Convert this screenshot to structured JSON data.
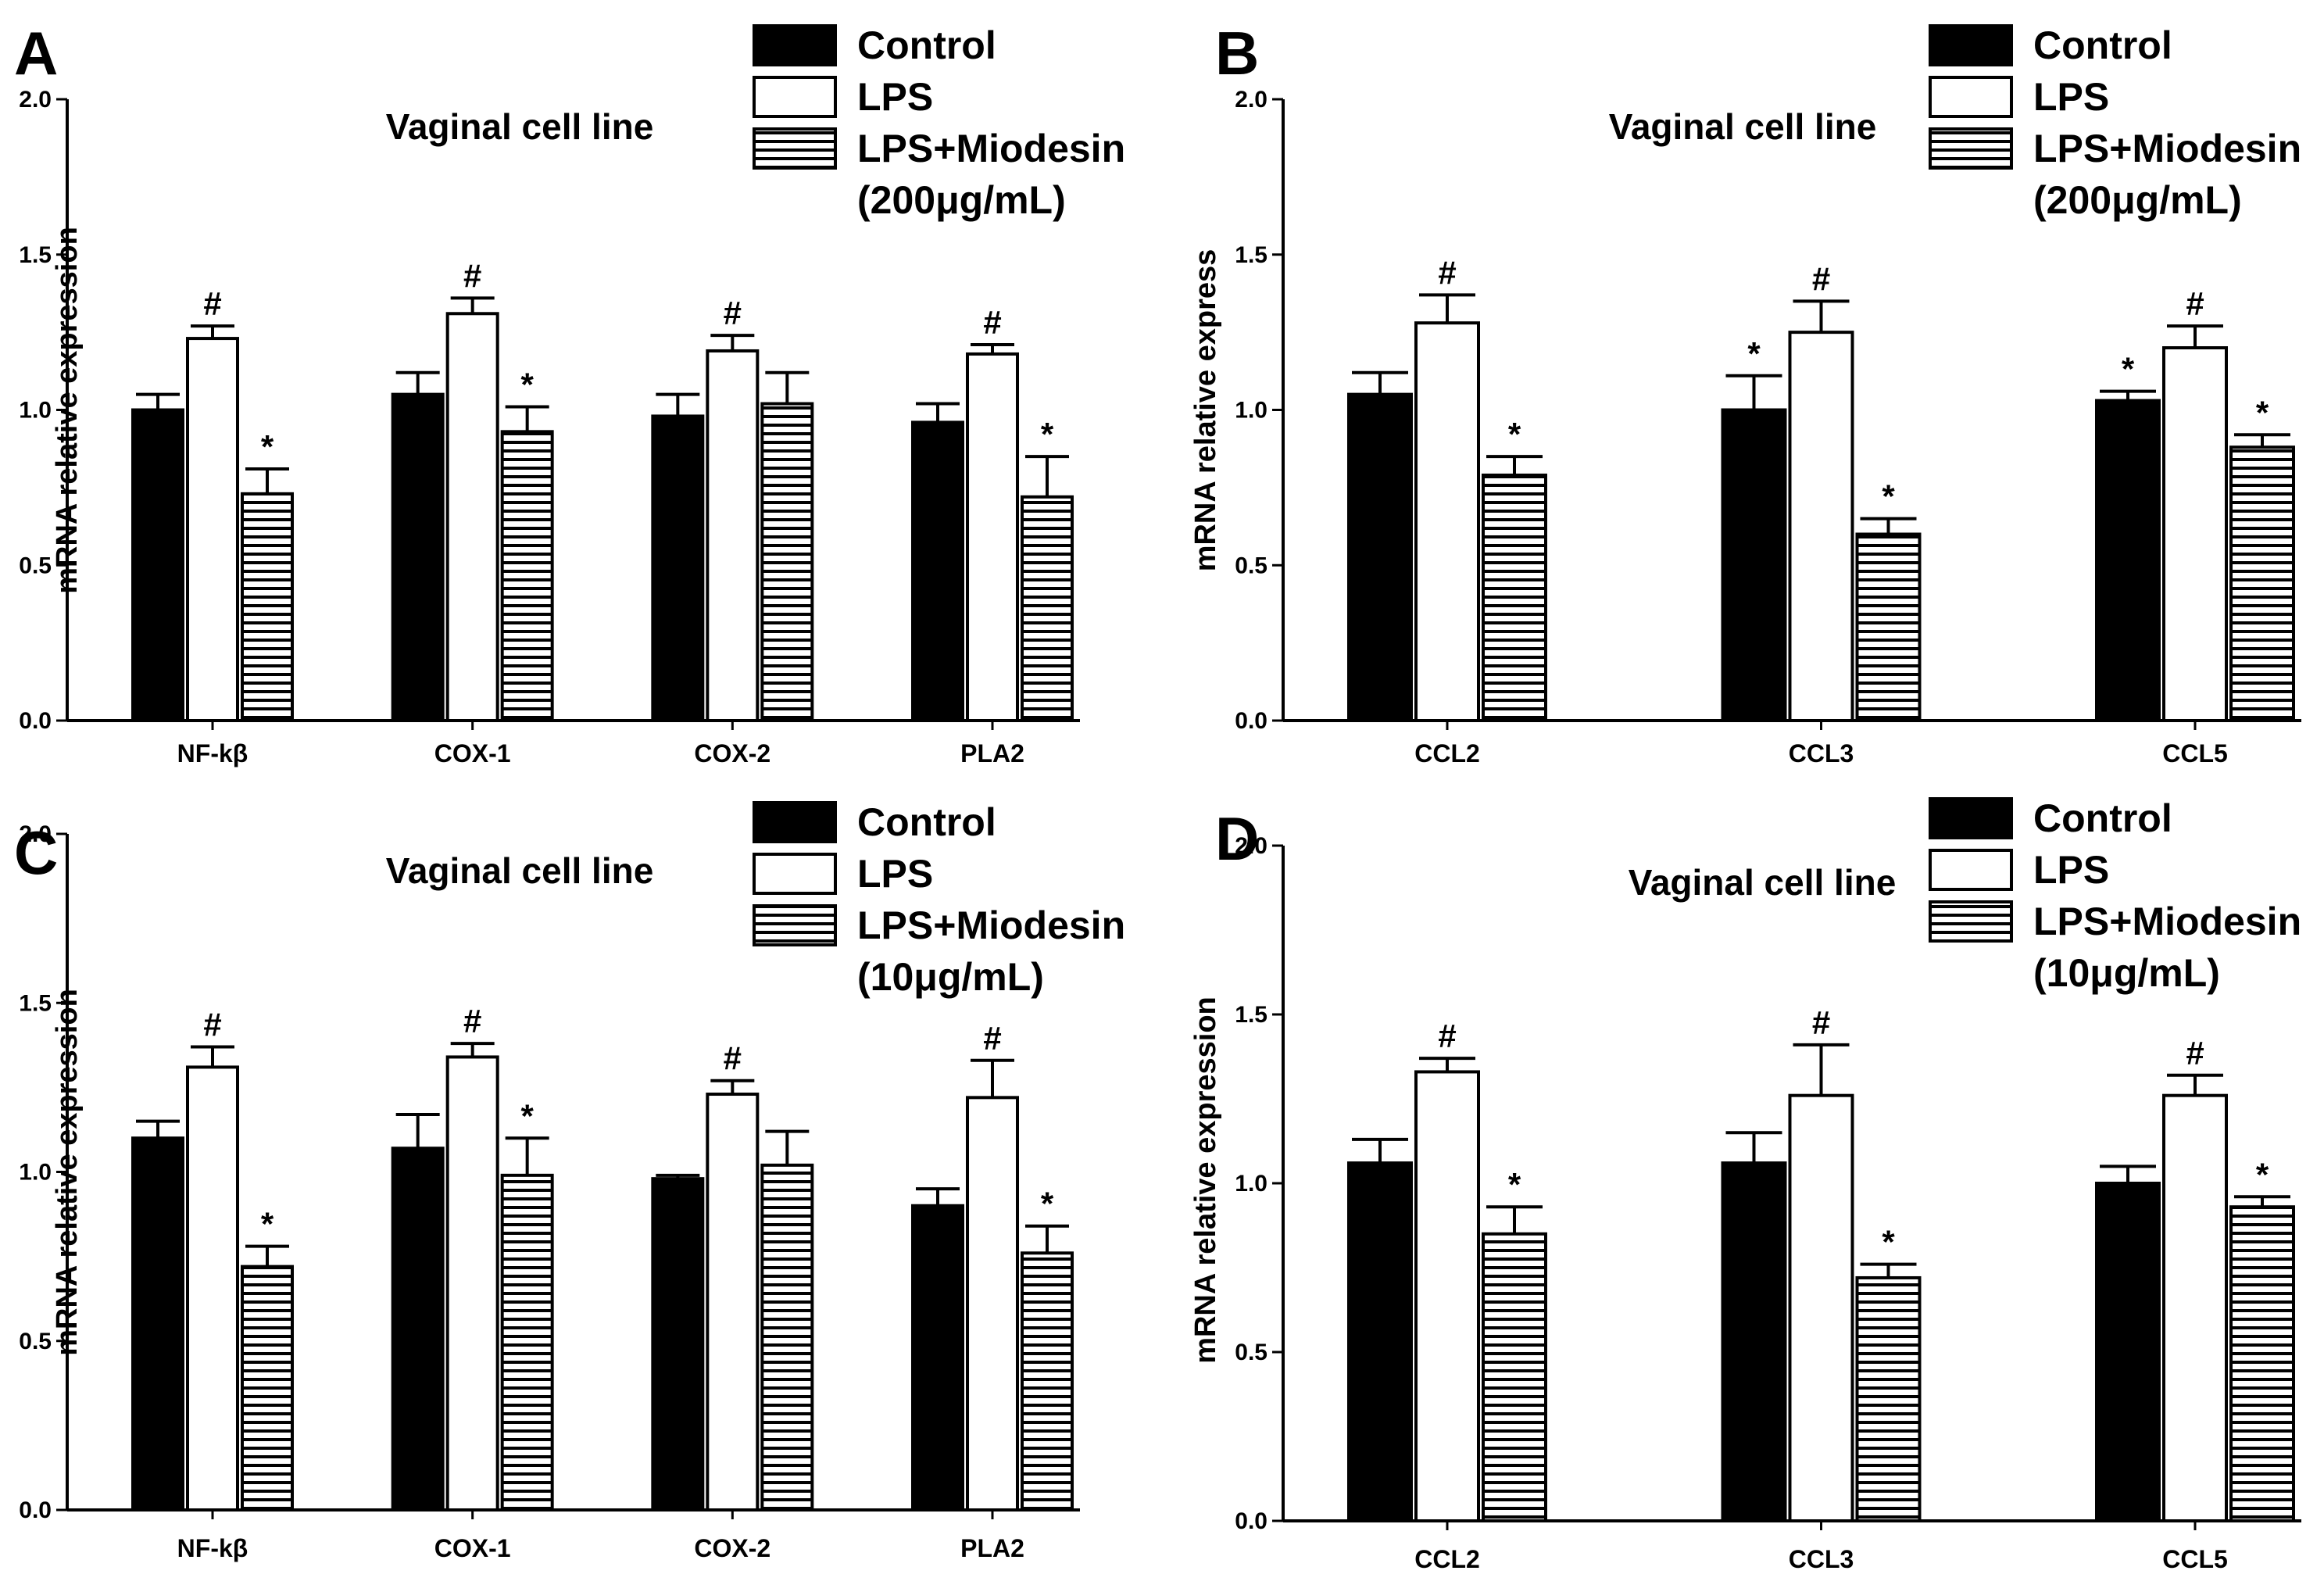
{
  "colors": {
    "control": "#000000",
    "lps": "#ffffff",
    "treated_stripe": "#000000",
    "axis": "#000000"
  },
  "legend_swatches": [
    "solid-black",
    "white",
    "horizontal-stripes"
  ],
  "chart_data": [
    {
      "panel": "A",
      "type": "bar",
      "title": "Vaginal cell line",
      "ylabel": "mRNA relative expression",
      "xlabel": "",
      "ylim": [
        0,
        2.0
      ],
      "yticks": [
        "0.0",
        "0.5",
        "1.0",
        "1.5",
        "2.0"
      ],
      "grid": false,
      "legend_position": "top-right",
      "legend": [
        "Control",
        "LPS",
        "LPS+Miodesin",
        "(200μg/mL)"
      ],
      "categories": [
        "NF-kβ",
        "COX-1",
        "COX-2",
        "PLA2"
      ],
      "series": [
        {
          "name": "Control",
          "values": [
            1.0,
            1.05,
            0.98,
            0.96
          ],
          "errors": [
            0.05,
            0.07,
            0.07,
            0.06
          ],
          "marks": [
            "",
            "",
            "",
            ""
          ]
        },
        {
          "name": "LPS",
          "values": [
            1.23,
            1.31,
            1.19,
            1.18
          ],
          "errors": [
            0.04,
            0.05,
            0.05,
            0.03
          ],
          "marks": [
            "#",
            "#",
            "#",
            "#"
          ]
        },
        {
          "name": "LPS+Miodesin (200μg/mL)",
          "values": [
            0.73,
            0.93,
            1.02,
            0.72
          ],
          "errors": [
            0.08,
            0.08,
            0.1,
            0.13
          ],
          "marks": [
            "*",
            "*",
            "",
            "*"
          ]
        }
      ]
    },
    {
      "panel": "B",
      "type": "bar",
      "title": "Vaginal cell line",
      "ylabel": "mRNA relative express",
      "xlabel": "",
      "ylim": [
        0,
        2.0
      ],
      "yticks": [
        "0.0",
        "0.5",
        "1.0",
        "1.5",
        "2.0"
      ],
      "grid": false,
      "legend_position": "top-right",
      "legend": [
        "Control",
        "LPS",
        "LPS+Miodesin",
        "(200μg/mL)"
      ],
      "categories": [
        "CCL2",
        "CCL3",
        "CCL5"
      ],
      "series": [
        {
          "name": "Control",
          "values": [
            1.05,
            1.0,
            1.03
          ],
          "errors": [
            0.07,
            0.11,
            0.03
          ],
          "marks": [
            "",
            "*",
            "*"
          ]
        },
        {
          "name": "LPS",
          "values": [
            1.28,
            1.25,
            1.2
          ],
          "errors": [
            0.09,
            0.1,
            0.07
          ],
          "marks": [
            "#",
            "#",
            "#"
          ]
        },
        {
          "name": "LPS+Miodesin (200μg/mL)",
          "values": [
            0.79,
            0.6,
            0.88
          ],
          "errors": [
            0.06,
            0.05,
            0.04
          ],
          "marks": [
            "*",
            "*",
            "*"
          ]
        }
      ]
    },
    {
      "panel": "C",
      "type": "bar",
      "title": "Vaginal cell line",
      "ylabel": "mRNA relative expression",
      "xlabel": "",
      "ylim": [
        0,
        2.0
      ],
      "yticks": [
        "0.0",
        "0.5",
        "1.0",
        "1.5",
        "2.0"
      ],
      "grid": false,
      "legend_position": "top-right",
      "legend": [
        "Control",
        "LPS",
        "LPS+Miodesin",
        "(10μg/mL)"
      ],
      "categories": [
        "NF-kβ",
        "COX-1",
        "COX-2",
        "PLA2"
      ],
      "series": [
        {
          "name": "Control",
          "values": [
            1.1,
            1.07,
            0.98,
            0.9
          ],
          "errors": [
            0.05,
            0.1,
            0.01,
            0.05
          ],
          "marks": [
            "",
            "",
            "",
            ""
          ]
        },
        {
          "name": "LPS",
          "values": [
            1.31,
            1.34,
            1.23,
            1.22
          ],
          "errors": [
            0.06,
            0.04,
            0.04,
            0.11
          ],
          "marks": [
            "#",
            "#",
            "#",
            "#"
          ]
        },
        {
          "name": "LPS+Miodesin (10μg/mL)",
          "values": [
            0.72,
            0.99,
            1.02,
            0.76
          ],
          "errors": [
            0.06,
            0.11,
            0.1,
            0.08
          ],
          "marks": [
            "*",
            "*",
            "",
            "*"
          ]
        }
      ]
    },
    {
      "panel": "D",
      "type": "bar",
      "title": "Vaginal cell line",
      "ylabel": "mRNA relative expression",
      "xlabel": "",
      "ylim": [
        0,
        2.0
      ],
      "yticks": [
        "0.0",
        "0.5",
        "1.0",
        "1.5",
        "2.0"
      ],
      "grid": false,
      "legend_position": "top-right",
      "legend": [
        "Control",
        "LPS",
        "LPS+Miodesin",
        "(10μg/mL)"
      ],
      "categories": [
        "CCL2",
        "CCL3",
        "CCL5"
      ],
      "series": [
        {
          "name": "Control",
          "values": [
            1.06,
            1.06,
            1.0
          ],
          "errors": [
            0.07,
            0.09,
            0.05
          ],
          "marks": [
            "",
            "",
            ""
          ]
        },
        {
          "name": "LPS",
          "values": [
            1.33,
            1.26,
            1.26
          ],
          "errors": [
            0.04,
            0.15,
            0.06
          ],
          "marks": [
            "#",
            "#",
            "#"
          ]
        },
        {
          "name": "LPS+Miodesin (10μg/mL)",
          "values": [
            0.85,
            0.72,
            0.93
          ],
          "errors": [
            0.08,
            0.04,
            0.03
          ],
          "marks": [
            "*",
            "*",
            "*"
          ]
        }
      ]
    }
  ]
}
